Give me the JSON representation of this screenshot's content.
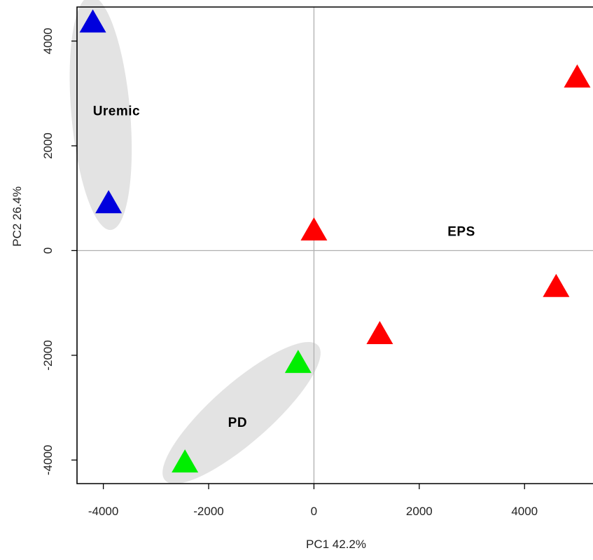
{
  "chart_data": {
    "type": "scatter",
    "xlabel": "PC1  42.2%",
    "ylabel": "PC2  26.4%",
    "xlim": [
      -4500,
      5300
    ],
    "ylim": [
      -4450,
      4650
    ],
    "xticks": [
      -4000,
      -2000,
      0,
      2000,
      4000
    ],
    "yticks": [
      -4000,
      -2000,
      0,
      2000,
      4000
    ],
    "xtick_labels": [
      "-4000",
      "-2000",
      "0",
      "2000",
      "4000"
    ],
    "ytick_labels": [
      "-4000",
      "-2000",
      "0",
      "2000",
      "4000"
    ],
    "reference_lines": {
      "x": 0,
      "y": 0
    },
    "marker": "triangle",
    "groups": [
      {
        "label": "Uremic",
        "color": "#0000dd",
        "points": [
          [
            -4200,
            4350
          ],
          [
            -3900,
            900
          ]
        ],
        "ellipse": true,
        "label_position": [
          -3750,
          2650
        ]
      },
      {
        "label": "PD",
        "color": "#00ee00",
        "points": [
          [
            -300,
            -2150
          ],
          [
            -2450,
            -4050
          ]
        ],
        "ellipse": true,
        "label_position": [
          -1450,
          -3300
        ]
      },
      {
        "label": "EPS",
        "color": "#ff0000",
        "points": [
          [
            0,
            380
          ],
          [
            1250,
            -1600
          ],
          [
            4600,
            -700
          ],
          [
            5000,
            3300
          ]
        ],
        "ellipse": false,
        "label_position": [
          2800,
          350
        ]
      }
    ],
    "ellipse_color": "#e3e3e3"
  }
}
